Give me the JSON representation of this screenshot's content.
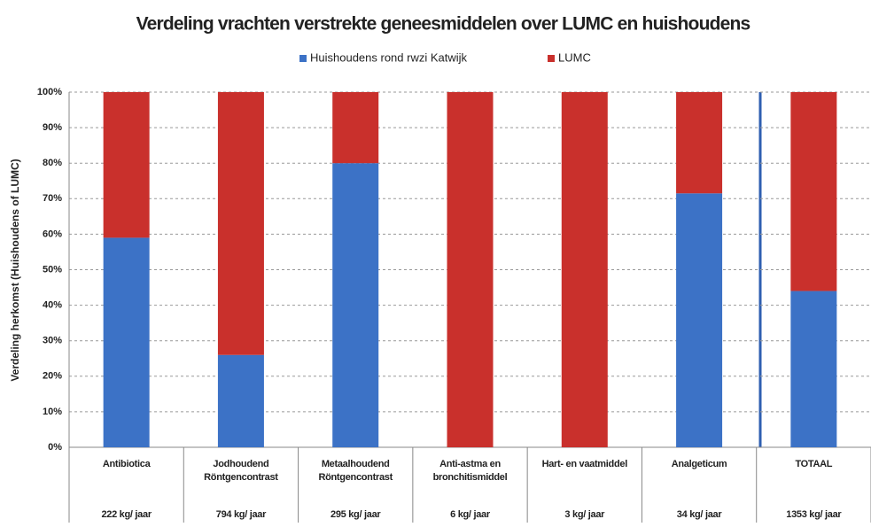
{
  "chart_data": {
    "type": "stacked_bar_percent",
    "title": "Verdeling vrachten verstrekte geneesmiddelen over LUMC en huishoudens",
    "y_label": "Verdeling herkomst (Huishoudens of LUMC)",
    "categories": [
      "Antibiotica",
      "Jodhoudend Röntgencontrast",
      "Metaalhoudend Röntgencontrast",
      "Anti-astma en bronchitismiddel",
      "Hart- en vaatmiddel",
      "Analgeticum",
      "TOTAAL"
    ],
    "category_totals": [
      "222 kg/ jaar",
      "794 kg/ jaar",
      "295 kg/ jaar",
      "6 kg/ jaar",
      "3 kg/ jaar",
      "34 kg/ jaar",
      "1353 kg/ jaar"
    ],
    "series": [
      {
        "name": "Huishoudens rond rwzi Katwijk",
        "color": "#3c72c6",
        "values": [
          59,
          26,
          80,
          0,
          0,
          71.5,
          44
        ]
      },
      {
        "name": "LUMC",
        "color": "#c9302c",
        "values": [
          41,
          74,
          20,
          100,
          100,
          28.5,
          56
        ]
      }
    ],
    "ylim": [
      0,
      100
    ],
    "yticks": [
      {
        "value": 0,
        "label": "0%"
      },
      {
        "value": 10,
        "label": "10%"
      },
      {
        "value": 20,
        "label": "20%"
      },
      {
        "value": 30,
        "label": "30%"
      },
      {
        "value": 40,
        "label": "40%"
      },
      {
        "value": 50,
        "label": "50%"
      },
      {
        "value": 60,
        "label": "60%"
      },
      {
        "value": 70,
        "label": "70%"
      },
      {
        "value": 80,
        "label": "80%"
      },
      {
        "value": 90,
        "label": "90%"
      },
      {
        "value": 100,
        "label": "100%"
      }
    ],
    "grid": true
  }
}
